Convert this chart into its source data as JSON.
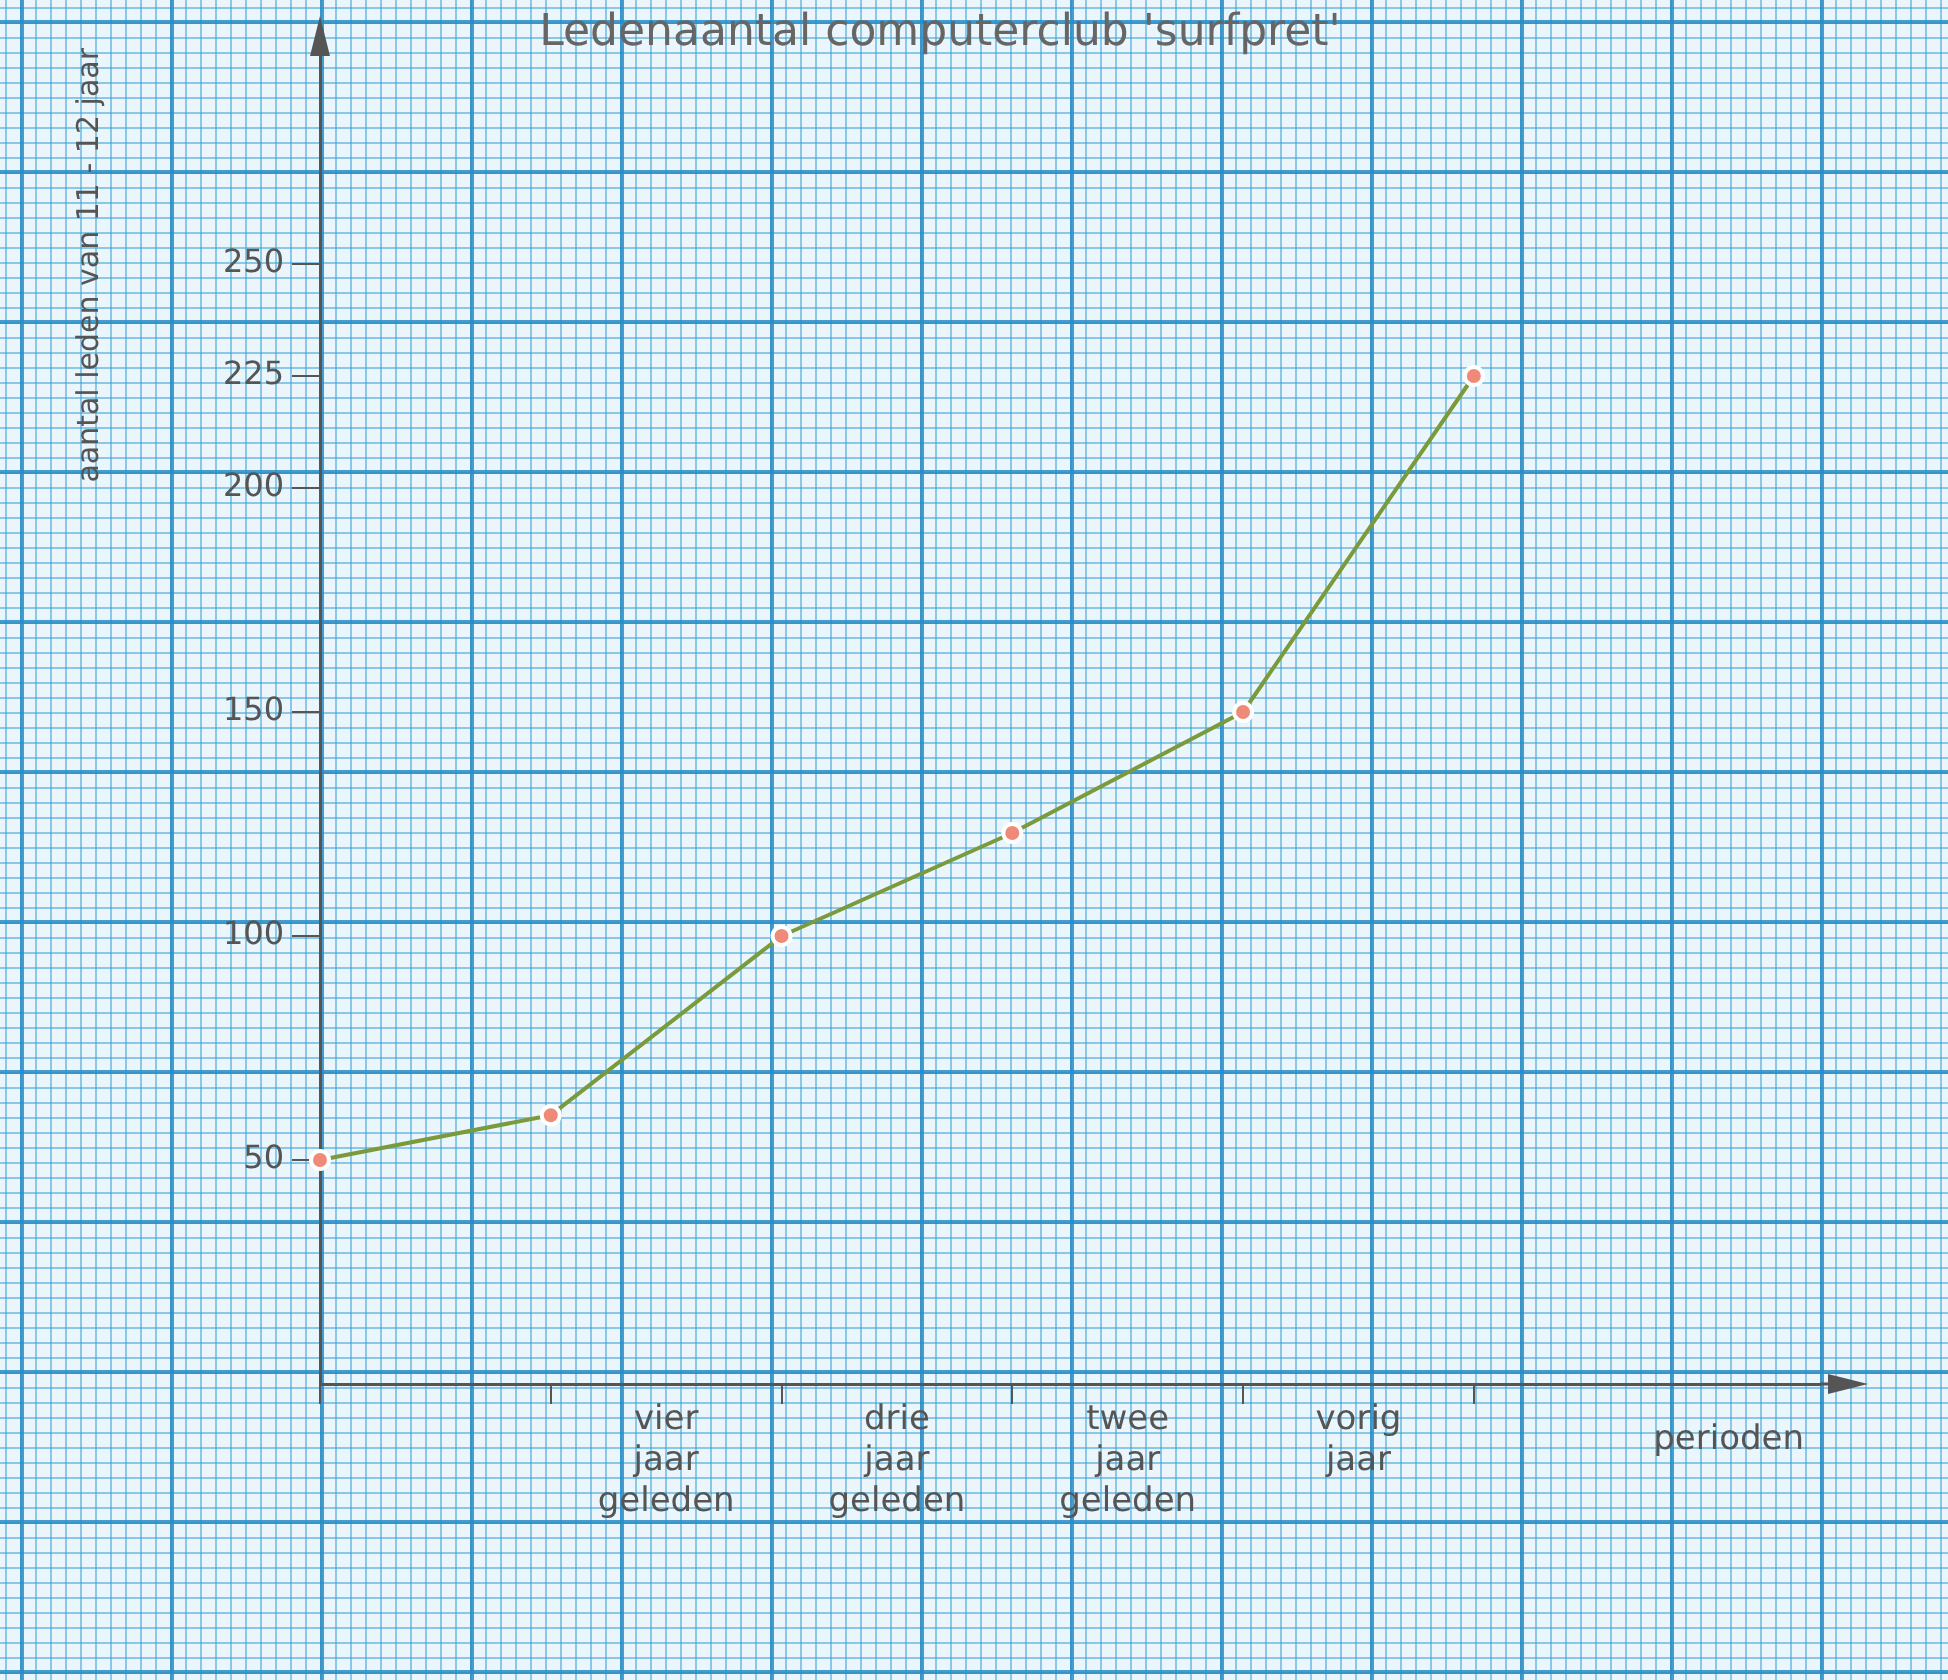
{
  "chart_data": {
    "type": "line",
    "title": "Ledenaantal computerclub 'surfpret'",
    "xlabel": "perioden",
    "ylabel": "aantal leden van 11 - 12 jaar",
    "categories": [
      null,
      null,
      null,
      "vier jaar geleden",
      null,
      "drie jaar geleden",
      null,
      "twee jaar geleden",
      null,
      "vorig jaar",
      null,
      null,
      null,
      null
    ],
    "series": [
      {
        "color": "#7a9a3c",
        "values": [
          50,
          null,
          60,
          null,
          100,
          null,
          123,
          null,
          150,
          null,
          225,
          null,
          null,
          null
        ]
      }
    ],
    "ylim": [
      0,
      300
    ],
    "yticks": [
      50,
      100,
      150,
      200,
      225,
      250
    ],
    "marker": "circle",
    "line_style": "solid",
    "grid": false,
    "legend": false
  }
}
